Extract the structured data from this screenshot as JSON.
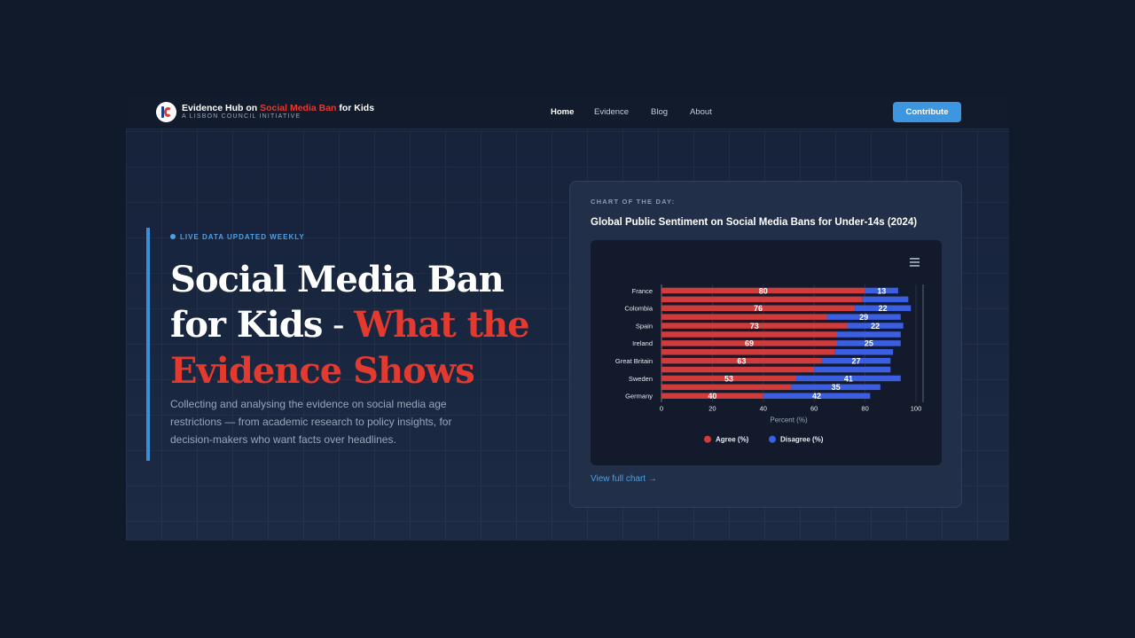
{
  "brand": {
    "title_prefix": "Evidence Hub on ",
    "title_highlight": "Social Media Ban",
    "title_suffix": " for Kids",
    "subtitle": "A LISBON COUNCIL INITIATIVE"
  },
  "nav": {
    "links": [
      "Home",
      "Evidence",
      "Blog",
      "About"
    ],
    "cta": "Contribute"
  },
  "hero": {
    "tag": "LIVE DATA UPDATED WEEKLY",
    "headline_white": "Social Media Ban for Kids",
    "dash": " - ",
    "headline_red": "What the Evidence Shows",
    "lede": "Collecting and analysing the evidence on social media age restrictions — from academic research to policy insights, for decision-makers who want facts over headlines."
  },
  "card": {
    "label": "CHART OF THE DAY:",
    "title": "Global Public Sentiment on Social Media Bans for Under-14s (2024)",
    "link": "View full chart →"
  },
  "chart_data": {
    "type": "bar",
    "orientation": "horizontal",
    "stacked": true,
    "title": "Global Public Sentiment on Social Media Bans for Under-14s (2024)",
    "xlabel": "Percent (%)",
    "xlim": [
      0,
      100
    ],
    "xticks": [
      0,
      20,
      40,
      60,
      80,
      100
    ],
    "categories": [
      "France",
      "",
      "Colombia",
      "",
      "Spain",
      "",
      "Ireland",
      "",
      "Great Britain",
      "",
      "Sweden",
      "",
      "Germany"
    ],
    "series": [
      {
        "name": "Agree (%)",
        "color": "#d13b3b",
        "values": [
          80,
          79,
          76,
          65,
          73,
          69,
          69,
          68,
          63,
          60,
          53,
          51,
          40
        ]
      },
      {
        "name": "Disagree (%)",
        "color": "#3b5fe0",
        "values": [
          13,
          18,
          22,
          29,
          22,
          25,
          25,
          23,
          27,
          30,
          41,
          35,
          42
        ]
      }
    ],
    "data_labels": [
      {
        "row": 0,
        "agree": "80",
        "disagree": "13"
      },
      {
        "row": 2,
        "agree": "76",
        "disagree": "22"
      },
      {
        "row": 3,
        "agree": "",
        "disagree": "29"
      },
      {
        "row": 4,
        "agree": "73",
        "disagree": "22"
      },
      {
        "row": 6,
        "agree": "69",
        "disagree": "25"
      },
      {
        "row": 8,
        "agree": "63",
        "disagree": "27"
      },
      {
        "row": 10,
        "agree": "53",
        "disagree": "41"
      },
      {
        "row": 11,
        "agree": "",
        "disagree": "35"
      },
      {
        "row": 12,
        "agree": "40",
        "disagree": "42"
      }
    ],
    "legend": "bottom-center",
    "grid": true
  }
}
